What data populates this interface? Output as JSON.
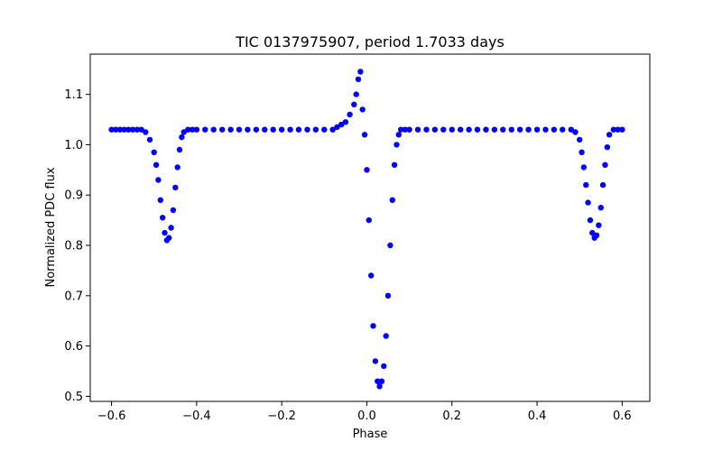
{
  "chart_data": {
    "type": "scatter",
    "title": "TIC 0137975907, period 1.7033 days",
    "xlabel": "Phase",
    "ylabel": "Normalized PDC flux",
    "xlim": [
      -0.65,
      0.665
    ],
    "ylim": [
      0.49,
      1.18
    ],
    "xticks": [
      -0.6,
      -0.4,
      -0.2,
      0.0,
      0.2,
      0.4,
      0.6
    ],
    "xtick_labels": [
      "−0.6",
      "−0.4",
      "−0.2",
      "0.0",
      "0.2",
      "0.4",
      "0.6"
    ],
    "yticks": [
      0.5,
      0.6,
      0.7,
      0.8,
      0.9,
      1.0,
      1.1
    ],
    "ytick_labels": [
      "0.5",
      "0.6",
      "0.7",
      "0.8",
      "0.9",
      "1.0",
      "1.1"
    ],
    "grid": false,
    "legend": "none",
    "marker_color": "#0000ff",
    "series": [
      {
        "x": [
          -0.6,
          -0.59,
          -0.58,
          -0.57,
          -0.56,
          -0.55,
          -0.54,
          -0.53,
          -0.52,
          -0.51,
          -0.5,
          -0.495,
          -0.49,
          -0.485,
          -0.48,
          -0.475,
          -0.47,
          -0.465,
          -0.46,
          -0.455,
          -0.45,
          -0.445,
          -0.44,
          -0.435,
          -0.43,
          -0.42,
          -0.41,
          -0.4,
          -0.38,
          -0.36,
          -0.34,
          -0.32,
          -0.3,
          -0.28,
          -0.26,
          -0.24,
          -0.22,
          -0.2,
          -0.18,
          -0.16,
          -0.14,
          -0.12,
          -0.1,
          -0.08,
          -0.07,
          -0.06,
          -0.05,
          -0.04,
          -0.03,
          -0.025,
          -0.02,
          -0.015,
          -0.01,
          -0.005,
          0.0,
          0.005,
          0.01,
          0.015,
          0.02,
          0.025,
          0.03,
          0.035,
          0.04,
          0.045,
          0.05,
          0.055,
          0.06,
          0.065,
          0.07,
          0.075,
          0.08,
          0.09,
          0.1,
          0.12,
          0.14,
          0.16,
          0.18,
          0.2,
          0.22,
          0.24,
          0.26,
          0.28,
          0.3,
          0.32,
          0.34,
          0.36,
          0.38,
          0.4,
          0.42,
          0.44,
          0.46,
          0.48,
          0.49,
          0.5,
          0.505,
          0.51,
          0.515,
          0.52,
          0.525,
          0.53,
          0.535,
          0.54,
          0.545,
          0.55,
          0.555,
          0.56,
          0.565,
          0.57,
          0.58,
          0.59,
          0.6
        ],
        "y": [
          1.03,
          1.03,
          1.03,
          1.03,
          1.03,
          1.03,
          1.03,
          1.03,
          1.025,
          1.01,
          0.985,
          0.96,
          0.93,
          0.89,
          0.855,
          0.825,
          0.81,
          0.815,
          0.835,
          0.87,
          0.915,
          0.955,
          0.99,
          1.015,
          1.025,
          1.03,
          1.03,
          1.03,
          1.03,
          1.03,
          1.03,
          1.03,
          1.03,
          1.03,
          1.03,
          1.03,
          1.03,
          1.03,
          1.03,
          1.03,
          1.03,
          1.03,
          1.03,
          1.03,
          1.035,
          1.04,
          1.045,
          1.06,
          1.08,
          1.1,
          1.13,
          1.145,
          1.07,
          1.02,
          0.95,
          0.85,
          0.74,
          0.64,
          0.57,
          0.53,
          0.52,
          0.53,
          0.56,
          0.62,
          0.7,
          0.8,
          0.89,
          0.96,
          1.0,
          1.02,
          1.03,
          1.03,
          1.03,
          1.03,
          1.03,
          1.03,
          1.03,
          1.03,
          1.03,
          1.03,
          1.03,
          1.03,
          1.03,
          1.03,
          1.03,
          1.03,
          1.03,
          1.03,
          1.03,
          1.03,
          1.03,
          1.03,
          1.025,
          1.01,
          0.985,
          0.955,
          0.92,
          0.885,
          0.85,
          0.825,
          0.815,
          0.82,
          0.84,
          0.875,
          0.92,
          0.96,
          0.995,
          1.02,
          1.03,
          1.03,
          1.03
        ]
      }
    ]
  }
}
